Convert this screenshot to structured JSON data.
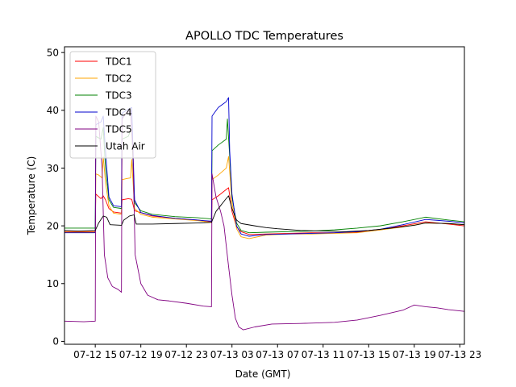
{
  "chart_data": {
    "type": "line",
    "title": "APOLLO TDC Temperatures",
    "xlabel": "Date (GMT)",
    "ylabel": "Temperature (C)",
    "x_unit": "hours since 07-12 00:00 GMT",
    "xlim": [
      12.3,
      47.4
    ],
    "ylim": [
      -0.5,
      51
    ],
    "x_ticks": [
      {
        "value": 15,
        "label": "07-12 15"
      },
      {
        "value": 19,
        "label": "07-12 19"
      },
      {
        "value": 23,
        "label": "07-12 23"
      },
      {
        "value": 27,
        "label": "07-13 03"
      },
      {
        "value": 31,
        "label": "07-13 07"
      },
      {
        "value": 35,
        "label": "07-13 11"
      },
      {
        "value": 39,
        "label": "07-13 15"
      },
      {
        "value": 43,
        "label": "07-13 19"
      },
      {
        "value": 47,
        "label": "07-13 23"
      }
    ],
    "y_ticks": [
      0,
      10,
      20,
      30,
      40,
      50
    ],
    "grid": false,
    "legend_position": "top-left",
    "series": [
      {
        "name": "TDC1",
        "color": "#ff0000",
        "points": [
          [
            12.3,
            19.0
          ],
          [
            15.0,
            19.0
          ],
          [
            15.05,
            25.5
          ],
          [
            15.5,
            24.7
          ],
          [
            15.7,
            25.2
          ],
          [
            15.9,
            24.5
          ],
          [
            16.2,
            23.0
          ],
          [
            16.6,
            22.4
          ],
          [
            17.3,
            22.2
          ],
          [
            17.35,
            24.5
          ],
          [
            17.9,
            24.7
          ],
          [
            18.2,
            24.6
          ],
          [
            18.45,
            22.6
          ],
          [
            19,
            22.3
          ],
          [
            20,
            21.7
          ],
          [
            22,
            21.3
          ],
          [
            24,
            21.0
          ],
          [
            25.2,
            20.7
          ],
          [
            25.25,
            24.5
          ],
          [
            25.8,
            25.2
          ],
          [
            26.5,
            26.3
          ],
          [
            26.7,
            26.6
          ],
          [
            27.0,
            22.5
          ],
          [
            27.4,
            19.8
          ],
          [
            27.8,
            19.0
          ],
          [
            28.5,
            18.5
          ],
          [
            30,
            18.6
          ],
          [
            32,
            18.7
          ],
          [
            34,
            18.8
          ],
          [
            36,
            18.8
          ],
          [
            38,
            18.9
          ],
          [
            40,
            19.3
          ],
          [
            42,
            20.0
          ],
          [
            44,
            20.7
          ],
          [
            46,
            20.3
          ],
          [
            47.4,
            20.0
          ]
        ]
      },
      {
        "name": "TDC2",
        "color": "#ffa500",
        "points": [
          [
            12.3,
            18.9
          ],
          [
            15.0,
            18.9
          ],
          [
            15.05,
            29.0
          ],
          [
            15.3,
            28.8
          ],
          [
            15.6,
            28.3
          ],
          [
            15.7,
            32.0
          ],
          [
            15.9,
            27.5
          ],
          [
            16.2,
            23.5
          ],
          [
            16.6,
            22.2
          ],
          [
            17.3,
            22.0
          ],
          [
            17.35,
            28.0
          ],
          [
            17.8,
            28.2
          ],
          [
            18.1,
            28.3
          ],
          [
            18.2,
            31.5
          ],
          [
            18.45,
            23.0
          ],
          [
            19,
            22.0
          ],
          [
            20,
            21.5
          ],
          [
            22,
            21.2
          ],
          [
            24,
            20.9
          ],
          [
            25.2,
            20.6
          ],
          [
            25.25,
            28.0
          ],
          [
            25.8,
            28.8
          ],
          [
            26.5,
            30.0
          ],
          [
            26.7,
            32.0
          ],
          [
            27.0,
            24.0
          ],
          [
            27.4,
            19.5
          ],
          [
            27.8,
            18.1
          ],
          [
            28.5,
            17.8
          ],
          [
            30,
            18.4
          ],
          [
            32,
            18.6
          ],
          [
            34,
            18.6
          ],
          [
            36,
            18.7
          ],
          [
            38,
            18.8
          ],
          [
            40,
            19.3
          ],
          [
            42,
            19.8
          ],
          [
            44,
            20.5
          ],
          [
            46,
            20.4
          ],
          [
            47.4,
            20.2
          ]
        ]
      },
      {
        "name": "TDC3",
        "color": "#008000",
        "points": [
          [
            12.3,
            19.6
          ],
          [
            15.0,
            19.6
          ],
          [
            15.05,
            35.5
          ],
          [
            15.5,
            35.0
          ],
          [
            15.7,
            37.0
          ],
          [
            15.9,
            30.0
          ],
          [
            16.2,
            24.5
          ],
          [
            16.6,
            23.2
          ],
          [
            17.3,
            23.0
          ],
          [
            17.35,
            35.0
          ],
          [
            17.9,
            35.5
          ],
          [
            18.2,
            37.0
          ],
          [
            18.45,
            24.0
          ],
          [
            19,
            22.6
          ],
          [
            20,
            22.0
          ],
          [
            22,
            21.6
          ],
          [
            24,
            21.4
          ],
          [
            25.2,
            21.2
          ],
          [
            25.25,
            33.0
          ],
          [
            25.8,
            34.0
          ],
          [
            26.5,
            35.0
          ],
          [
            26.6,
            38.5
          ],
          [
            26.8,
            32.0
          ],
          [
            27.0,
            25.0
          ],
          [
            27.4,
            20.5
          ],
          [
            27.8,
            19.2
          ],
          [
            28.5,
            18.8
          ],
          [
            30,
            18.9
          ],
          [
            32,
            19.0
          ],
          [
            34,
            19.1
          ],
          [
            36,
            19.3
          ],
          [
            38,
            19.6
          ],
          [
            40,
            20.0
          ],
          [
            42,
            20.7
          ],
          [
            44,
            21.5
          ],
          [
            46,
            21.0
          ],
          [
            47.4,
            20.7
          ]
        ]
      },
      {
        "name": "TDC4",
        "color": "#0000cd",
        "points": [
          [
            12.3,
            18.8
          ],
          [
            15.0,
            18.8
          ],
          [
            15.05,
            37.5
          ],
          [
            15.5,
            38.0
          ],
          [
            15.7,
            39.0
          ],
          [
            15.9,
            33.0
          ],
          [
            16.2,
            25.0
          ],
          [
            16.6,
            23.5
          ],
          [
            17.3,
            23.3
          ],
          [
            17.35,
            39.5
          ],
          [
            17.9,
            40.2
          ],
          [
            18.2,
            40.5
          ],
          [
            18.45,
            24.5
          ],
          [
            19,
            22.3
          ],
          [
            20,
            21.8
          ],
          [
            22,
            21.3
          ],
          [
            24,
            21.0
          ],
          [
            25.2,
            20.8
          ],
          [
            25.25,
            39.0
          ],
          [
            25.8,
            40.5
          ],
          [
            26.5,
            41.5
          ],
          [
            26.7,
            42.2
          ],
          [
            26.8,
            33.0
          ],
          [
            27.0,
            25.5
          ],
          [
            27.4,
            20.0
          ],
          [
            27.8,
            18.6
          ],
          [
            28.5,
            18.2
          ],
          [
            30,
            18.5
          ],
          [
            32,
            18.6
          ],
          [
            34,
            18.7
          ],
          [
            36,
            18.8
          ],
          [
            38,
            19.0
          ],
          [
            40,
            19.4
          ],
          [
            42,
            20.2
          ],
          [
            44,
            21.1
          ],
          [
            46,
            20.8
          ],
          [
            47.4,
            20.5
          ]
        ]
      },
      {
        "name": "TDC5",
        "color": "#800080",
        "points": [
          [
            12.3,
            3.5
          ],
          [
            14.0,
            3.4
          ],
          [
            15.0,
            3.5
          ],
          [
            15.05,
            39.0
          ],
          [
            15.3,
            38.0
          ],
          [
            15.6,
            30.0
          ],
          [
            15.8,
            15.0
          ],
          [
            16.1,
            11.0
          ],
          [
            16.5,
            9.5
          ],
          [
            17.0,
            9.0
          ],
          [
            17.3,
            8.5
          ],
          [
            17.35,
            38.5
          ],
          [
            17.7,
            39.5
          ],
          [
            18.1,
            40.0
          ],
          [
            18.3,
            33.0
          ],
          [
            18.5,
            15.0
          ],
          [
            19.0,
            10.0
          ],
          [
            19.6,
            8.0
          ],
          [
            20.5,
            7.2
          ],
          [
            21.5,
            7.0
          ],
          [
            23,
            6.6
          ],
          [
            24.5,
            6.1
          ],
          [
            25.2,
            6.0
          ],
          [
            25.25,
            29.0
          ],
          [
            25.6,
            25.0
          ],
          [
            26.0,
            22.5
          ],
          [
            26.3,
            20.0
          ],
          [
            26.7,
            13.0
          ],
          [
            27.0,
            8.0
          ],
          [
            27.3,
            4.0
          ],
          [
            27.6,
            2.5
          ],
          [
            28.0,
            2.0
          ],
          [
            29,
            2.5
          ],
          [
            30.5,
            3.0
          ],
          [
            33,
            3.1
          ],
          [
            36,
            3.3
          ],
          [
            38,
            3.7
          ],
          [
            40,
            4.5
          ],
          [
            42,
            5.4
          ],
          [
            43,
            6.3
          ],
          [
            44,
            6.0
          ],
          [
            45,
            5.8
          ],
          [
            46,
            5.5
          ],
          [
            47.4,
            5.2
          ]
        ]
      },
      {
        "name": "Utah Air",
        "color": "#000000",
        "points": [
          [
            12.3,
            19.2
          ],
          [
            13.5,
            19.1
          ],
          [
            15.0,
            19.2
          ],
          [
            15.3,
            20.5
          ],
          [
            15.7,
            21.7
          ],
          [
            16.0,
            21.5
          ],
          [
            16.3,
            20.2
          ],
          [
            17.3,
            20.1
          ],
          [
            17.5,
            21.0
          ],
          [
            18.0,
            21.7
          ],
          [
            18.4,
            21.9
          ],
          [
            18.6,
            20.3
          ],
          [
            20,
            20.3
          ],
          [
            22,
            20.4
          ],
          [
            24,
            20.5
          ],
          [
            25.2,
            20.6
          ],
          [
            25.6,
            22.5
          ],
          [
            26.0,
            23.5
          ],
          [
            26.4,
            24.5
          ],
          [
            26.7,
            25.2
          ],
          [
            27.0,
            23.0
          ],
          [
            27.4,
            21.0
          ],
          [
            27.8,
            20.4
          ],
          [
            29,
            20.0
          ],
          [
            30,
            19.7
          ],
          [
            31,
            19.5
          ],
          [
            33,
            19.2
          ],
          [
            35,
            19.1
          ],
          [
            37,
            19.0
          ],
          [
            39,
            19.2
          ],
          [
            41,
            19.6
          ],
          [
            43,
            20.1
          ],
          [
            44,
            20.5
          ],
          [
            46,
            20.4
          ],
          [
            47.4,
            20.2
          ]
        ]
      }
    ]
  }
}
